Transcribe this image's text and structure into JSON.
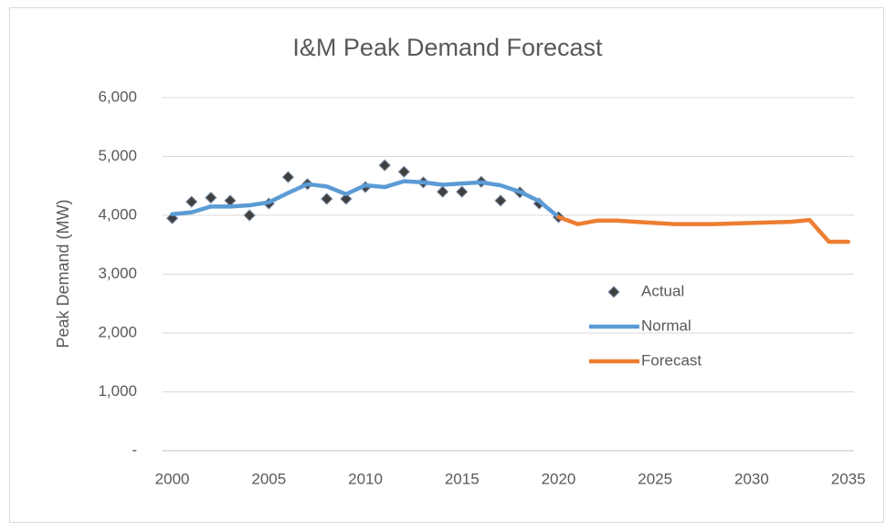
{
  "chart_data": {
    "type": "line",
    "title": "I&M Peak Demand Forecast",
    "y_label": "Peak Demand (MW)",
    "x": [
      2000,
      2001,
      2002,
      2003,
      2004,
      2005,
      2006,
      2007,
      2008,
      2009,
      2010,
      2011,
      2012,
      2013,
      2014,
      2015,
      2016,
      2017,
      2018,
      2019,
      2020,
      2021,
      2022,
      2023,
      2024,
      2025,
      2026,
      2027,
      2028,
      2029,
      2030,
      2031,
      2032,
      2033,
      2034,
      2035
    ],
    "series": [
      {
        "name": "Actual",
        "color": "#404040",
        "marker": "diamond",
        "values": [
          3950,
          4230,
          4300,
          4250,
          4000,
          4200,
          4650,
          4530,
          4280,
          4280,
          4480,
          4850,
          4740,
          4560,
          4400,
          4400,
          4570,
          4250,
          4390,
          4200,
          3970,
          null,
          null,
          null,
          null,
          null,
          null,
          null,
          null,
          null,
          null,
          null,
          null,
          null,
          null,
          null
        ]
      },
      {
        "name": "Normal",
        "color": "#5b9bd5",
        "values": [
          4020,
          4050,
          4150,
          4150,
          4170,
          4220,
          4380,
          4530,
          4490,
          4360,
          4510,
          4480,
          4580,
          4560,
          4520,
          4540,
          4560,
          4510,
          4400,
          4240,
          3970,
          null,
          null,
          null,
          null,
          null,
          null,
          null,
          null,
          null,
          null,
          null,
          null,
          null,
          null,
          null
        ]
      },
      {
        "name": "Forecast",
        "color": "#ed7d31",
        "values": [
          null,
          null,
          null,
          null,
          null,
          null,
          null,
          null,
          null,
          null,
          null,
          null,
          null,
          null,
          null,
          null,
          null,
          null,
          null,
          null,
          3970,
          3850,
          3910,
          3910,
          3890,
          3870,
          3850,
          3850,
          3850,
          3860,
          3870,
          3880,
          3890,
          3920,
          3550,
          3550
        ]
      }
    ],
    "xlim": [
      1999.5,
      2035.3
    ],
    "xticks": [
      2000,
      2005,
      2010,
      2015,
      2020,
      2025,
      2030,
      2035
    ],
    "ylim": [
      0,
      6000
    ],
    "yticks": [
      {
        "value": 0,
        "label": "-"
      },
      {
        "value": 1000,
        "label": "1,000"
      },
      {
        "value": 2000,
        "label": "2,000"
      },
      {
        "value": 3000,
        "label": "3,000"
      },
      {
        "value": 4000,
        "label": "4,000"
      },
      {
        "value": 5000,
        "label": "5,000"
      },
      {
        "value": 6000,
        "label": "6,000"
      }
    ],
    "grid": true,
    "legend": "right"
  }
}
